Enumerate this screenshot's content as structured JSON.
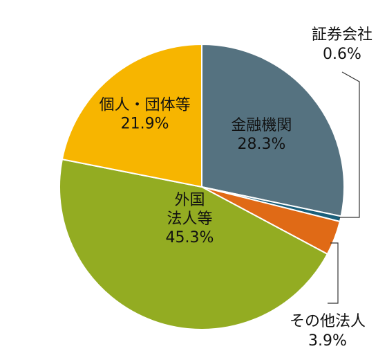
{
  "chart_data": {
    "type": "pie",
    "title": "",
    "slices": [
      {
        "label": "金融機関",
        "value": 28.3,
        "value_label": "28.3%",
        "color": "#557280"
      },
      {
        "label": "証券会社",
        "value": 0.6,
        "value_label": "0.6%",
        "color": "#1a5f7a"
      },
      {
        "label": "その他法人",
        "value": 3.9,
        "value_label": "3.9%",
        "color": "#e06a16"
      },
      {
        "label": "外国法人等",
        "value": 45.3,
        "value_label": "45.3%",
        "color": "#93ac22"
      },
      {
        "label": "個人・団体等",
        "value": 21.9,
        "value_label": "21.9%",
        "color": "#f7b500"
      }
    ],
    "start_angle": "12 o'clock",
    "direction": "clockwise",
    "legend": "none"
  }
}
